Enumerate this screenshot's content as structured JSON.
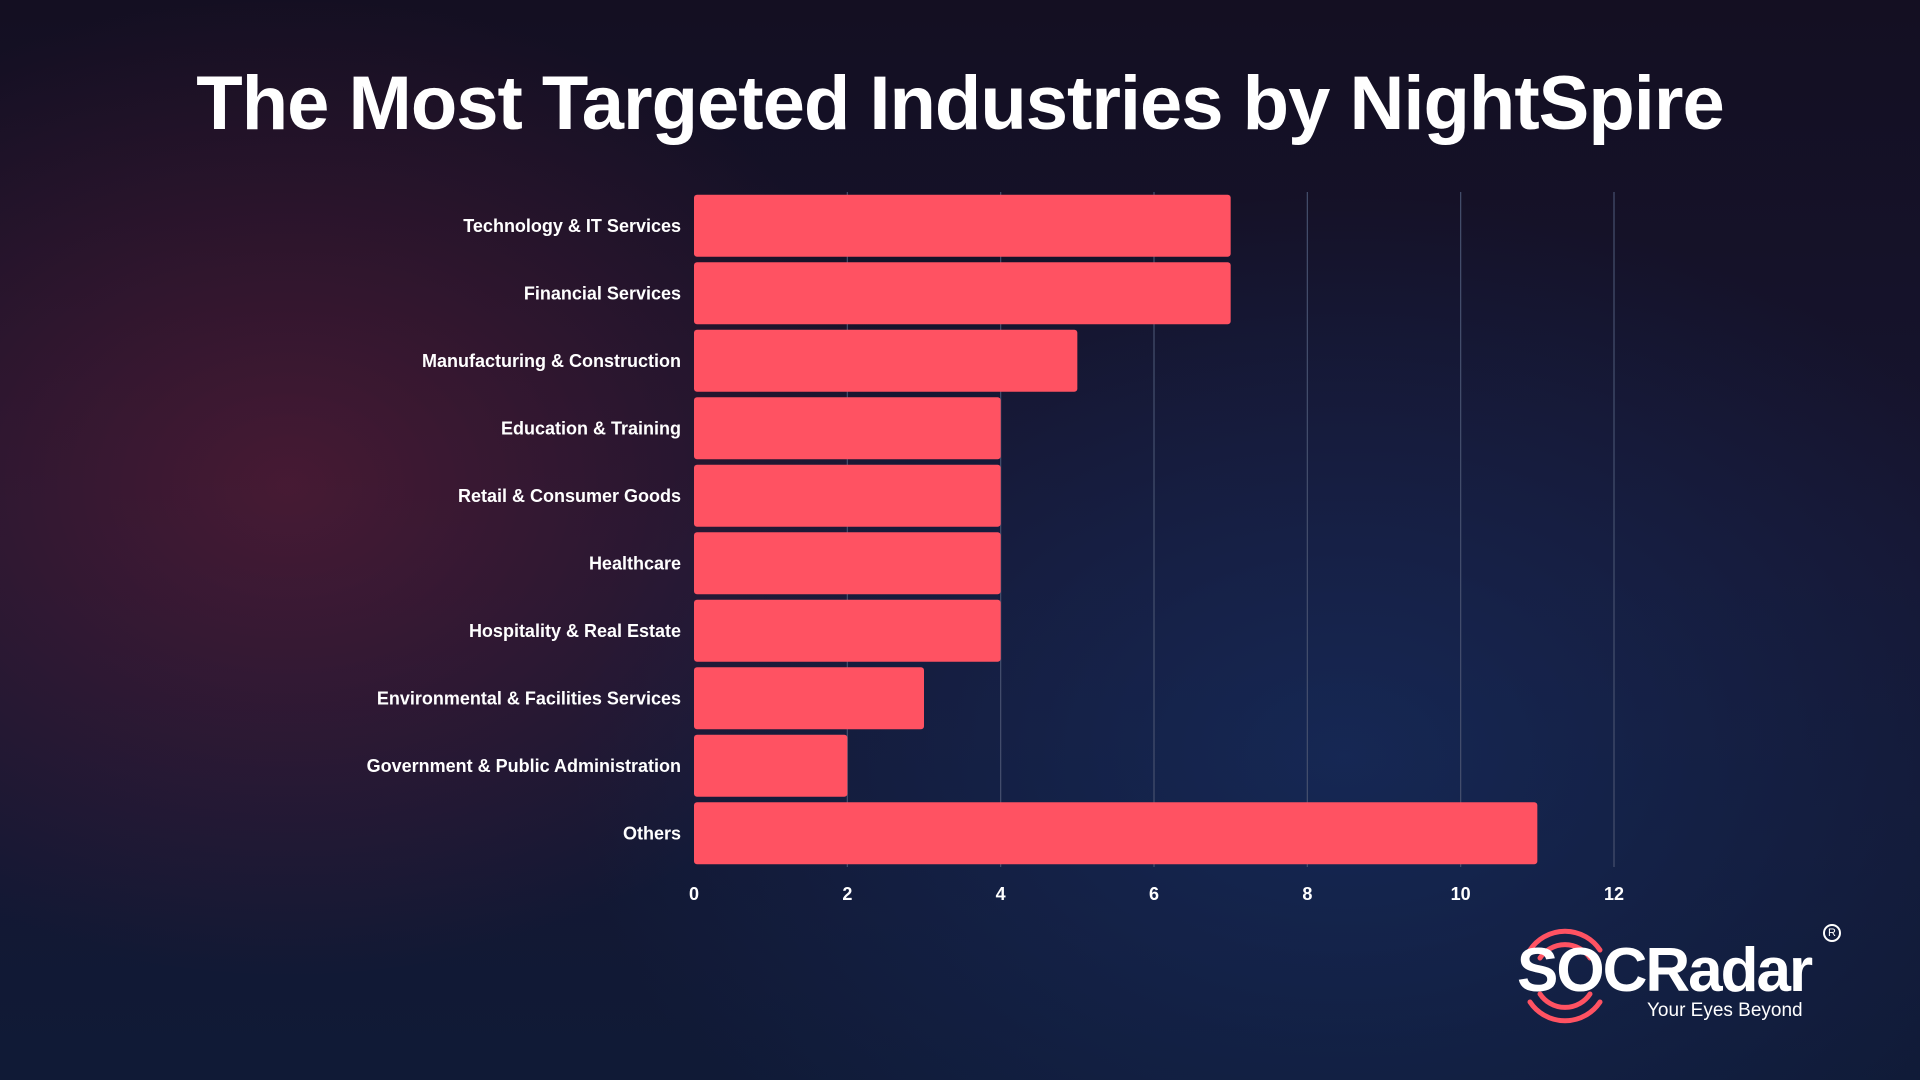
{
  "title": "The Most Targeted Industries by NightSpire",
  "logo": {
    "wordmark": "SOCRadar",
    "tagline": "Your Eyes Beyond",
    "registered_mark": "R",
    "accent_color": "#ff5262"
  },
  "colors": {
    "bar": "#ff5262",
    "grid": "#46506e",
    "text": "#ffffff"
  },
  "chart_data": {
    "type": "bar",
    "orientation": "horizontal",
    "title": "The Most Targeted Industries by NightSpire",
    "categories": [
      "Technology & IT Services",
      "Financial Services",
      "Manufacturing & Construction",
      "Education & Training",
      "Retail & Consumer Goods",
      "Healthcare",
      "Hospitality & Real Estate",
      "Environmental & Facilities Services",
      "Government & Public Administration",
      "Others"
    ],
    "values": [
      7,
      7,
      5,
      4,
      4,
      4,
      4,
      3,
      2,
      11
    ],
    "xlim": [
      0,
      12
    ],
    "xticks": [
      0,
      2,
      4,
      6,
      8,
      10,
      12
    ],
    "xlabel": "",
    "ylabel": "",
    "grid": "vertical",
    "legend": "none"
  }
}
